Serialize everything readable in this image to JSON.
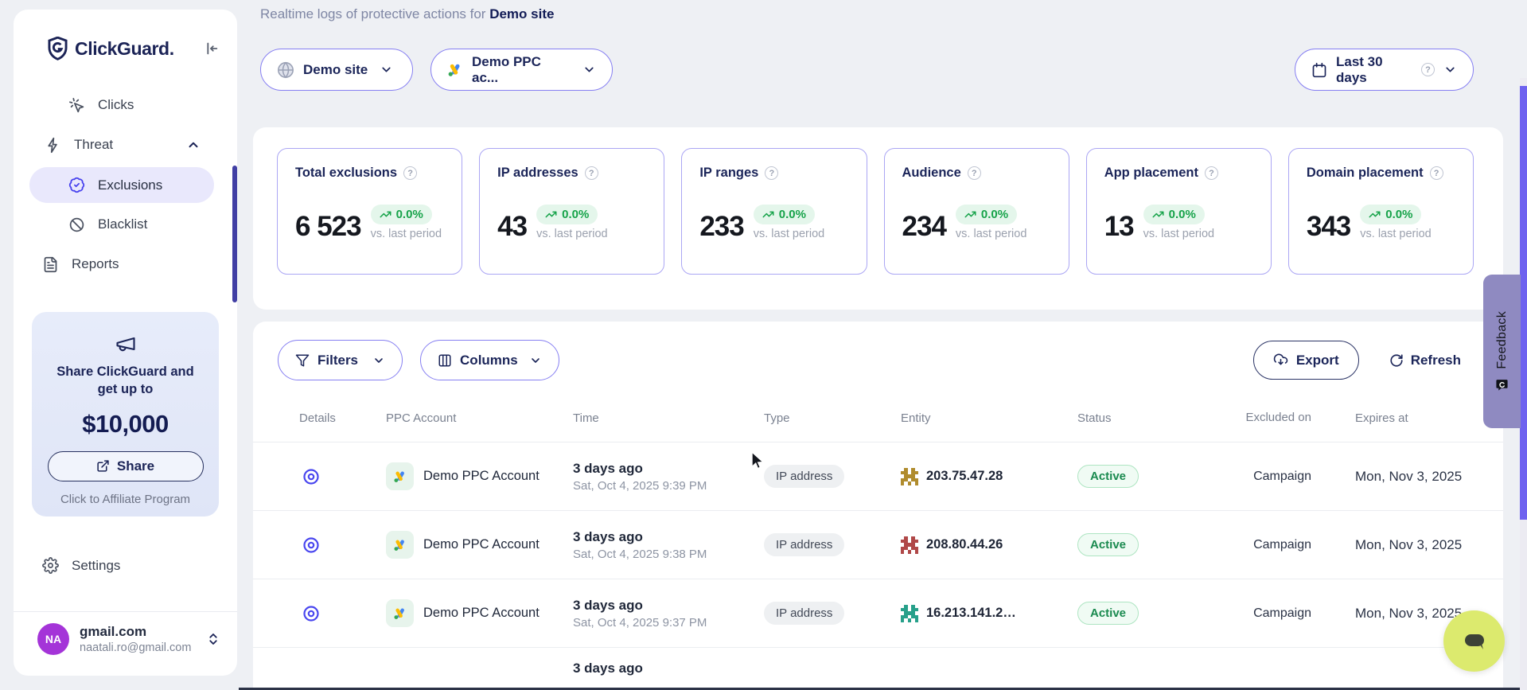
{
  "page": {
    "title_prefix": "Realtime logs of protective actions for ",
    "site_name": "Demo site"
  },
  "toolbar": {
    "site_selector": "Demo site",
    "account_selector": "Demo PPC ac...",
    "date_range": "Last 30 days"
  },
  "sidebar": {
    "brand": "ClickGuard.",
    "nav": [
      {
        "label": "Clicks"
      },
      {
        "label": "Threat"
      },
      {
        "label": "Exclusions",
        "active": true
      },
      {
        "label": "Blacklist"
      },
      {
        "label": "Reports"
      }
    ],
    "promo": {
      "line1": "Share ClickGuard and",
      "line2": "get up to",
      "amount": "$10,000",
      "share_label": "Share",
      "affiliate_label": "Click to Affiliate Program"
    },
    "settings_label": "Settings",
    "user": {
      "initials": "NA",
      "name": "gmail.com",
      "email": "naatali.ro@gmail.com"
    }
  },
  "stats": [
    {
      "label": "Total exclusions",
      "value": "6 523",
      "change": "0.0%",
      "sub": "vs. last period"
    },
    {
      "label": "IP addresses",
      "value": "43",
      "change": "0.0%",
      "sub": "vs. last period"
    },
    {
      "label": "IP ranges",
      "value": "233",
      "change": "0.0%",
      "sub": "vs. last period"
    },
    {
      "label": "Audience",
      "value": "234",
      "change": "0.0%",
      "sub": "vs. last period"
    },
    {
      "label": "App placement",
      "value": "13",
      "change": "0.0%",
      "sub": "vs. last period"
    },
    {
      "label": "Domain placement",
      "value": "343",
      "change": "0.0%",
      "sub": "vs. last period"
    }
  ],
  "table": {
    "controls": {
      "filters_label": "Filters",
      "columns_label": "Columns",
      "export_label": "Export",
      "refresh_label": "Refresh"
    },
    "headers": [
      "Details",
      "PPC Account",
      "Time",
      "Type",
      "Entity",
      "Status",
      "Excluded on",
      "Expires at"
    ],
    "rows": [
      {
        "account": "Demo PPC Account",
        "time_ago": "3 days ago",
        "time_full": "Sat, Oct 4, 2025 9:39 PM",
        "type": "IP address",
        "entity": "203.75.47.28",
        "status": "Active",
        "excluded_on": "Campaign",
        "expires": "Mon, Nov 3, 2025",
        "identicon": {
          "c1": "#b08c2e",
          "c2": "#5a5426"
        }
      },
      {
        "account": "Demo PPC Account",
        "time_ago": "3 days ago",
        "time_full": "Sat, Oct 4, 2025 9:38 PM",
        "type": "IP address",
        "entity": "208.80.44.26",
        "status": "Active",
        "excluded_on": "Campaign",
        "expires": "Mon, Nov 3, 2025",
        "identicon": {
          "c1": "#b04848",
          "c2": "#7c2f2f"
        }
      },
      {
        "account": "Demo PPC Account",
        "time_ago": "3 days ago",
        "time_full": "Sat, Oct 4, 2025 9:37 PM",
        "type": "IP address",
        "entity": "16.213.141.2…",
        "status": "Active",
        "excluded_on": "Campaign",
        "expires": "Mon, Nov 3, 2025",
        "identicon": {
          "c1": "#27a08a",
          "c2": "#177362"
        }
      }
    ],
    "partial_row_time": "3 days ago"
  },
  "feedback_label": "Feedback",
  "colors": {
    "accent_purple": "#6e62ef",
    "brand_navy": "#1b2356",
    "badge_green": "#17a34a",
    "active_green": "#1a8a4f",
    "chat_bubble": "#dcea6e",
    "avatar_purple": "#a434d8"
  }
}
